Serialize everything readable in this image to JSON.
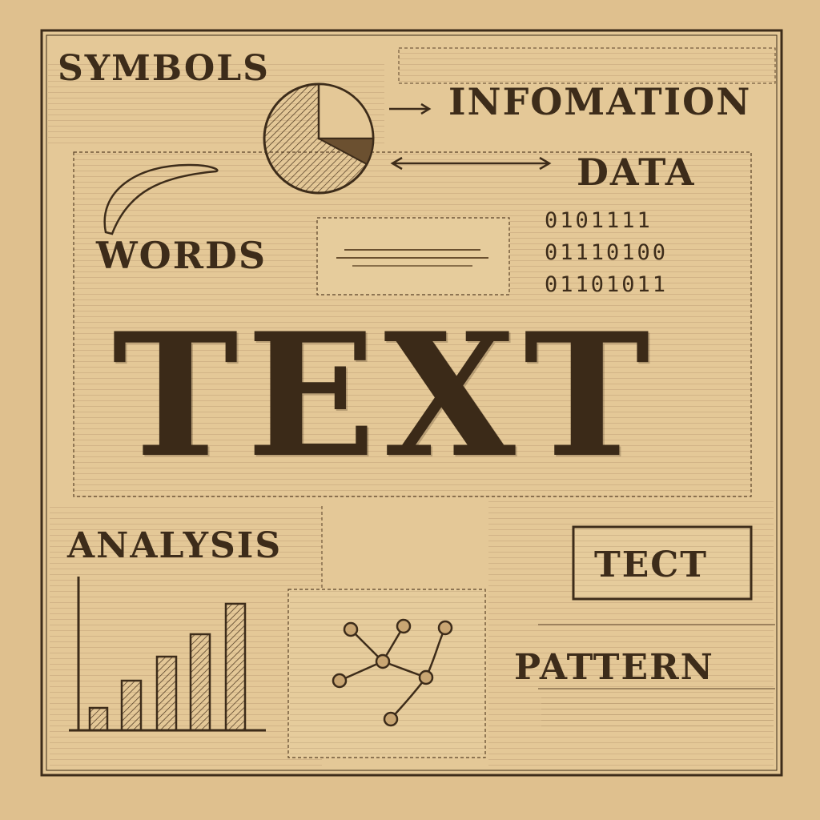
{
  "labels": {
    "symbols": "SYMBOLS",
    "information": "INFOMATION",
    "data": "DATA",
    "words": "WORDS",
    "title": "TEXT",
    "analysis": "ANALYSIS",
    "tect": "TECT",
    "pattern": "PATTERN"
  },
  "binary": [
    "0101111",
    "01110100",
    "01101011"
  ],
  "icons": [
    "pie-chart-icon",
    "arrow-right-icon",
    "double-arrow-icon",
    "bar-chart-icon",
    "network-graph-icon"
  ],
  "colors": {
    "paper": "#dfc08e",
    "ink": "#3a2a18"
  }
}
